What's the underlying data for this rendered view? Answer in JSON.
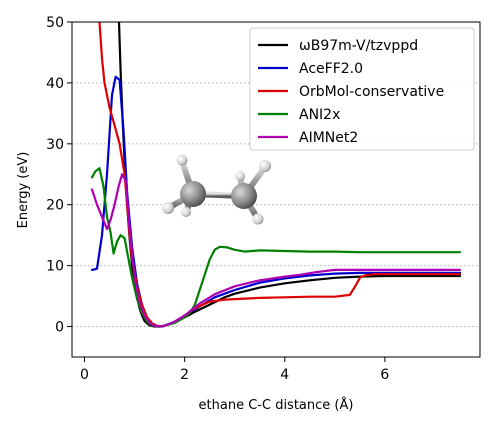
{
  "chart_data": {
    "type": "line",
    "xlabel": "ethane C-C distance (Å)",
    "ylabel": "Energy (eV)",
    "xlim": [
      -0.25,
      7.9
    ],
    "ylim": [
      -5,
      50
    ],
    "xticks": [
      0,
      2,
      4,
      6
    ],
    "yticks": [
      0,
      10,
      20,
      30,
      40,
      50
    ],
    "grid": "horizontal dotted",
    "legend_position": "top-right",
    "inset": "ethane-molecule-ball-and-stick",
    "series": [
      {
        "name": "ωB97m-V/tzvppd",
        "color": "#000000",
        "x": [
          0.68,
          0.72,
          0.76,
          0.8,
          0.85,
          0.9,
          0.95,
          1.0,
          1.05,
          1.1,
          1.15,
          1.2,
          1.3,
          1.4,
          1.5,
          1.6,
          1.8,
          2.0,
          2.2,
          2.5,
          2.8,
          3.0,
          3.5,
          4.0,
          4.5,
          5.0,
          5.5,
          6.0,
          6.5,
          7.0,
          7.5
        ],
        "y": [
          52,
          42,
          34,
          27,
          20,
          14.5,
          10,
          7,
          4.8,
          3.0,
          1.8,
          0.9,
          0.2,
          0.0,
          0.0,
          0.1,
          0.7,
          1.5,
          2.4,
          3.6,
          4.8,
          5.4,
          6.4,
          7.1,
          7.6,
          8.0,
          8.2,
          8.3,
          8.3,
          8.3,
          8.3
        ]
      },
      {
        "name": "AceFF2.0",
        "color": "#0000cc",
        "x": [
          0.15,
          0.25,
          0.35,
          0.45,
          0.55,
          0.62,
          0.7,
          0.78,
          0.85,
          0.95,
          1.05,
          1.15,
          1.25,
          1.35,
          1.45,
          1.55,
          1.8,
          2.0,
          2.3,
          2.6,
          3.0,
          3.5,
          4.0,
          4.5,
          5.0,
          5.5,
          6.0,
          6.5,
          7.0,
          7.5
        ],
        "y": [
          9.3,
          9.5,
          15,
          25,
          38,
          41,
          40.5,
          32,
          22,
          13,
          7,
          3.5,
          1.5,
          0.5,
          0.1,
          0.0,
          0.8,
          1.8,
          3.3,
          4.8,
          6.0,
          7.2,
          7.9,
          8.4,
          8.7,
          8.8,
          8.8,
          8.8,
          8.8,
          8.8
        ]
      },
      {
        "name": "OrbMol-conservative",
        "color": "#dd0000",
        "x": [
          0.3,
          0.35,
          0.4,
          0.5,
          0.6,
          0.7,
          0.8,
          0.85,
          0.9,
          0.95,
          1.05,
          1.15,
          1.25,
          1.35,
          1.45,
          1.55,
          1.8,
          2.0,
          2.2,
          2.5,
          2.8,
          3.0,
          3.5,
          4.0,
          4.5,
          5.0,
          5.3,
          5.4,
          5.5,
          5.6,
          5.8,
          6.0,
          6.5,
          7.0,
          7.5
        ],
        "y": [
          50,
          44,
          40,
          36,
          33,
          30,
          25,
          20,
          15,
          11,
          6.5,
          3.5,
          1.5,
          0.5,
          0.1,
          0.0,
          0.7,
          1.8,
          3.0,
          4.1,
          4.4,
          4.5,
          4.7,
          4.8,
          4.9,
          4.9,
          5.2,
          6.5,
          8.0,
          8.4,
          8.6,
          8.6,
          8.6,
          8.6,
          8.6
        ]
      },
      {
        "name": "ANI2x",
        "color": "#008000",
        "x": [
          0.15,
          0.22,
          0.3,
          0.38,
          0.45,
          0.52,
          0.58,
          0.65,
          0.72,
          0.8,
          0.88,
          0.95,
          1.05,
          1.15,
          1.25,
          1.35,
          1.45,
          1.55,
          1.8,
          2.0,
          2.1,
          2.2,
          2.3,
          2.4,
          2.5,
          2.6,
          2.7,
          2.85,
          3.0,
          3.2,
          3.5,
          4.0,
          4.5,
          5.0,
          5.5,
          6.0,
          6.5,
          7.0,
          7.5
        ],
        "y": [
          24.5,
          25.5,
          26,
          23,
          18,
          15.5,
          12,
          14,
          15,
          14.5,
          11,
          8,
          4.5,
          2.2,
          0.8,
          0.2,
          0.0,
          0.0,
          0.6,
          1.5,
          2.2,
          3.5,
          6,
          8.5,
          11,
          12.6,
          13.1,
          13.0,
          12.6,
          12.3,
          12.5,
          12.4,
          12.3,
          12.3,
          12.2,
          12.2,
          12.2,
          12.2,
          12.2
        ]
      },
      {
        "name": "AIMNet2",
        "color": "#b000b0",
        "x": [
          0.15,
          0.25,
          0.35,
          0.45,
          0.52,
          0.6,
          0.68,
          0.75,
          0.82,
          0.9,
          1.0,
          1.1,
          1.2,
          1.3,
          1.4,
          1.5,
          1.6,
          1.8,
          2.0,
          2.3,
          2.6,
          3.0,
          3.5,
          4.0,
          4.3,
          4.6,
          5.0,
          5.5,
          6.0,
          6.5,
          7.0,
          7.5
        ],
        "y": [
          22.5,
          20,
          18,
          16,
          17.5,
          20,
          23,
          25,
          24,
          16,
          8,
          4,
          1.8,
          0.6,
          0.1,
          0.0,
          0.1,
          0.8,
          1.8,
          3.8,
          5.3,
          6.6,
          7.6,
          8.2,
          8.5,
          8.9,
          9.3,
          9.3,
          9.3,
          9.3,
          9.3,
          9.3
        ]
      }
    ]
  }
}
